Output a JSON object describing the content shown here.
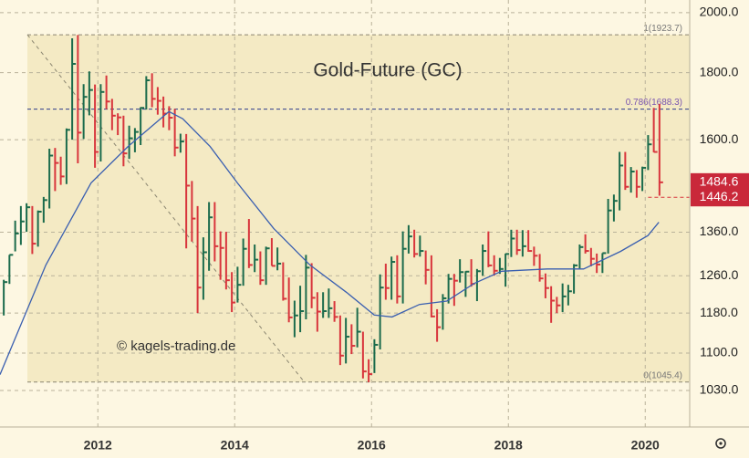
{
  "chart_data": {
    "type": "ohlc",
    "title": "Gold-Future (GC)",
    "watermark": "© kagels-trading.de",
    "log": true,
    "grid": true,
    "colors": {
      "up": "#1b6b4c",
      "down": "#d8353c"
    },
    "xlim": [
      2010.57,
      2020.65
    ],
    "xticks": [
      2012,
      2014,
      2016,
      2018,
      2020
    ],
    "ylim": [
      966,
      2045
    ],
    "yticks": [
      {
        "value": 1030,
        "label": "1030.0"
      },
      {
        "value": 1100,
        "label": "1100.0"
      },
      {
        "value": 1180,
        "label": "1180.0"
      },
      {
        "value": 1260,
        "label": "1260.0"
      },
      {
        "value": 1360,
        "label": "1360.0"
      },
      {
        "value": 1600,
        "label": "1600.0"
      },
      {
        "value": 1800,
        "label": "1800.0"
      },
      {
        "value": 2000,
        "label": "2000.0"
      }
    ],
    "x": [
      2010.625,
      2010.708,
      2010.792,
      2010.875,
      2010.958,
      2011.042,
      2011.125,
      2011.208,
      2011.292,
      2011.375,
      2011.458,
      2011.542,
      2011.625,
      2011.708,
      2011.792,
      2011.875,
      2011.958,
      2012.042,
      2012.125,
      2012.208,
      2012.292,
      2012.375,
      2012.458,
      2012.542,
      2012.625,
      2012.708,
      2012.792,
      2012.875,
      2012.958,
      2013.042,
      2013.125,
      2013.208,
      2013.292,
      2013.375,
      2013.458,
      2013.542,
      2013.625,
      2013.708,
      2013.792,
      2013.875,
      2013.958,
      2014.042,
      2014.125,
      2014.208,
      2014.292,
      2014.375,
      2014.458,
      2014.542,
      2014.625,
      2014.708,
      2014.792,
      2014.875,
      2014.958,
      2015.042,
      2015.125,
      2015.208,
      2015.292,
      2015.375,
      2015.458,
      2015.542,
      2015.625,
      2015.708,
      2015.792,
      2015.875,
      2015.958,
      2016.042,
      2016.125,
      2016.208,
      2016.292,
      2016.375,
      2016.458,
      2016.542,
      2016.625,
      2016.708,
      2016.792,
      2016.875,
      2016.958,
      2017.042,
      2017.125,
      2017.208,
      2017.292,
      2017.375,
      2017.458,
      2017.542,
      2017.625,
      2017.708,
      2017.792,
      2017.875,
      2017.958,
      2018.042,
      2018.125,
      2018.208,
      2018.292,
      2018.375,
      2018.458,
      2018.542,
      2018.625,
      2018.708,
      2018.792,
      2018.875,
      2018.958,
      2019.042,
      2019.125,
      2019.208,
      2019.292,
      2019.375,
      2019.458,
      2019.542,
      2019.625,
      2019.708,
      2019.792,
      2019.875,
      2019.958,
      2020.042,
      2020.125,
      2020.208
    ],
    "high": [
      1251,
      1307,
      1388,
      1424,
      1431,
      1424,
      1413,
      1447,
      1575,
      1577,
      1553,
      1632,
      1912,
      1923,
      1764,
      1804,
      1763,
      1764,
      1791,
      1719,
      1676,
      1669,
      1640,
      1633,
      1694,
      1789,
      1798,
      1755,
      1726,
      1697,
      1689,
      1617,
      1616,
      1488,
      1424,
      1348,
      1434,
      1434,
      1362,
      1361,
      1268,
      1280,
      1345,
      1392,
      1331,
      1315,
      1326,
      1346,
      1324,
      1290,
      1256,
      1206,
      1238,
      1307,
      1288,
      1224,
      1224,
      1232,
      1205,
      1175,
      1170,
      1157,
      1191,
      1142,
      1088,
      1127,
      1263,
      1287,
      1303,
      1306,
      1362,
      1377,
      1366,
      1352,
      1317,
      1306,
      1188,
      1220,
      1264,
      1264,
      1297,
      1270,
      1297,
      1275,
      1331,
      1362,
      1306,
      1300,
      1310,
      1366,
      1366,
      1365,
      1365,
      1326,
      1309,
      1265,
      1237,
      1214,
      1243,
      1240,
      1286,
      1331,
      1355,
      1323,
      1310,
      1311,
      1442,
      1453,
      1566,
      1566,
      1525,
      1517,
      1526,
      1613,
      1692,
      1704
    ],
    "low": [
      1175,
      1242,
      1315,
      1330,
      1361,
      1309,
      1326,
      1383,
      1418,
      1462,
      1478,
      1480,
      1600,
      1535,
      1602,
      1670,
      1523,
      1540,
      1688,
      1627,
      1613,
      1527,
      1547,
      1565,
      1585,
      1687,
      1694,
      1672,
      1635,
      1627,
      1554,
      1564,
      1322,
      1338,
      1180,
      1208,
      1271,
      1292,
      1251,
      1230,
      1182,
      1202,
      1238,
      1277,
      1268,
      1240,
      1240,
      1282,
      1272,
      1206,
      1161,
      1131,
      1141,
      1167,
      1190,
      1142,
      1170,
      1170,
      1162,
      1077,
      1080,
      1098,
      1111,
      1052,
      1045,
      1062,
      1107,
      1208,
      1208,
      1200,
      1200,
      1310,
      1301,
      1303,
      1241,
      1171,
      1122,
      1146,
      1200,
      1195,
      1245,
      1214,
      1236,
      1205,
      1260,
      1279,
      1260,
      1264,
      1236,
      1302,
      1307,
      1303,
      1314,
      1282,
      1247,
      1211,
      1160,
      1180,
      1182,
      1196,
      1221,
      1276,
      1310,
      1281,
      1266,
      1266,
      1310,
      1386,
      1413,
      1465,
      1458,
      1445,
      1462,
      1517,
      1565,
      1450
    ],
    "close": [
      1246,
      1307,
      1357,
      1386,
      1421,
      1333,
      1410,
      1439,
      1556,
      1536,
      1500,
      1628,
      1828,
      1620,
      1725,
      1746,
      1566,
      1740,
      1711,
      1669,
      1664,
      1562,
      1604,
      1622,
      1692,
      1776,
      1719,
      1713,
      1675,
      1663,
      1578,
      1595,
      1476,
      1393,
      1234,
      1313,
      1396,
      1327,
      1323,
      1250,
      1202,
      1240,
      1321,
      1284,
      1296,
      1250,
      1322,
      1282,
      1287,
      1210,
      1171,
      1175,
      1184,
      1278,
      1212,
      1183,
      1184,
      1190,
      1172,
      1095,
      1132,
      1114,
      1142,
      1065,
      1060,
      1116,
      1234,
      1233,
      1291,
      1215,
      1321,
      1350,
      1309,
      1316,
      1273,
      1173,
      1151,
      1211,
      1253,
      1249,
      1268,
      1269,
      1242,
      1270,
      1316,
      1283,
      1271,
      1275,
      1309,
      1345,
      1318,
      1327,
      1316,
      1305,
      1254,
      1233,
      1206,
      1196,
      1215,
      1226,
      1283,
      1325,
      1316,
      1298,
      1285,
      1311,
      1413,
      1437,
      1529,
      1473,
      1513,
      1473,
      1523,
      1587,
      1566,
      1484.6
    ],
    "ma": {
      "color": "#3a5fb0",
      "x": [
        2010.57,
        2011.24,
        2011.9,
        2012.44,
        2013.04,
        2013.24,
        2013.64,
        2014.04,
        2014.57,
        2015.1,
        2015.64,
        2016.04,
        2016.3,
        2016.7,
        2017.1,
        2017.5,
        2017.9,
        2018.57,
        2019.1,
        2019.64,
        2020.04,
        2020.2
      ],
      "values": [
        1059,
        1284,
        1483,
        1581,
        1681,
        1660,
        1581,
        1483,
        1369,
        1284,
        1223,
        1176,
        1172,
        1198,
        1205,
        1243,
        1270,
        1275,
        1275,
        1315,
        1352,
        1384
      ]
    },
    "levels": [
      {
        "value": 1923.7,
        "label": "1(1923.7)"
      },
      {
        "value": 1688.3,
        "label": "0.786(1688.3)"
      },
      {
        "value": 1045.4,
        "label": "0(1045.4)"
      }
    ],
    "price_labels": [
      1484.6,
      1446.2
    ]
  }
}
